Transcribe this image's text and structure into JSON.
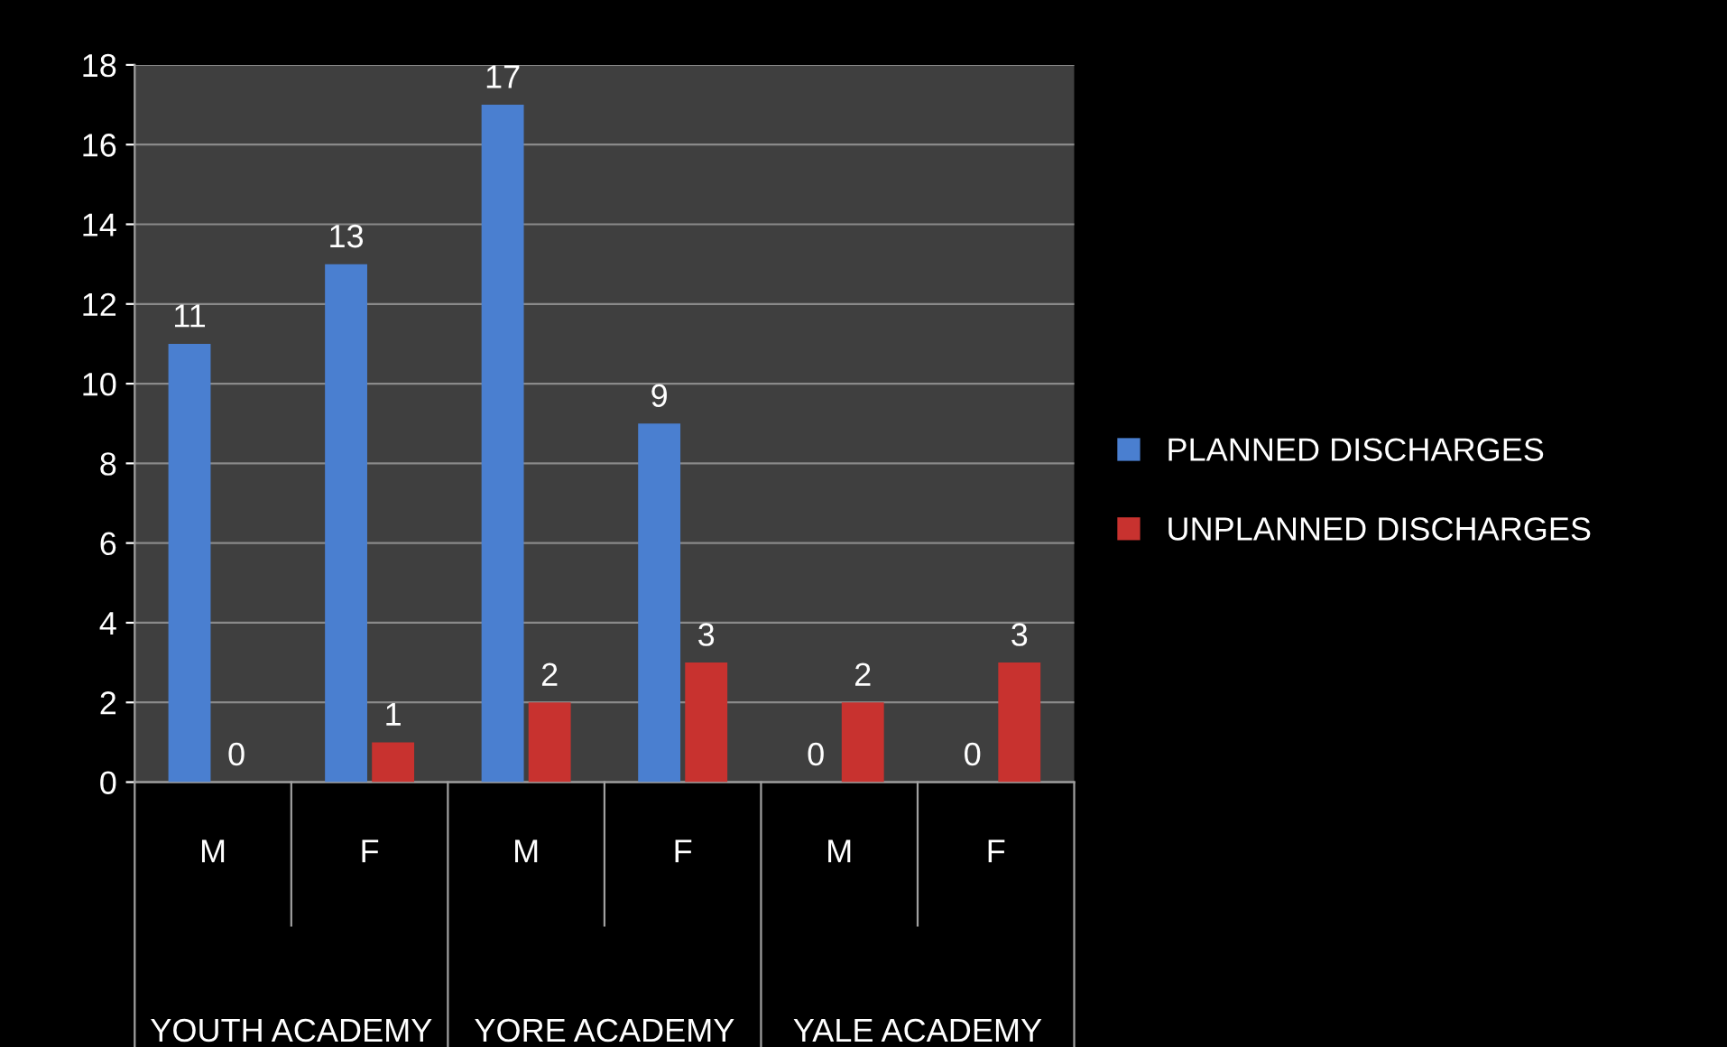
{
  "chart_data": {
    "type": "bar",
    "categories": [
      "M",
      "F",
      "M",
      "F",
      "M",
      "F"
    ],
    "series": [
      {
        "name": "PLANNED DISCHARGES",
        "color": "#4a7fd0",
        "values": [
          11,
          13,
          17,
          9,
          0,
          0
        ]
      },
      {
        "name": "UNPLANNED DISCHARGES",
        "color": "#c8322f",
        "values": [
          0,
          1,
          2,
          3,
          2,
          3
        ]
      }
    ],
    "annotations": [
      "YOUTH ACADEMY",
      "YORE ACADEMY",
      "YALE ACADEMY"
    ],
    "ylim": [
      0,
      18
    ],
    "yticks": [
      0,
      2,
      4,
      6,
      8,
      10,
      12,
      14,
      16,
      18
    ],
    "grid": "y",
    "legend": "right",
    "data_labels": true
  }
}
